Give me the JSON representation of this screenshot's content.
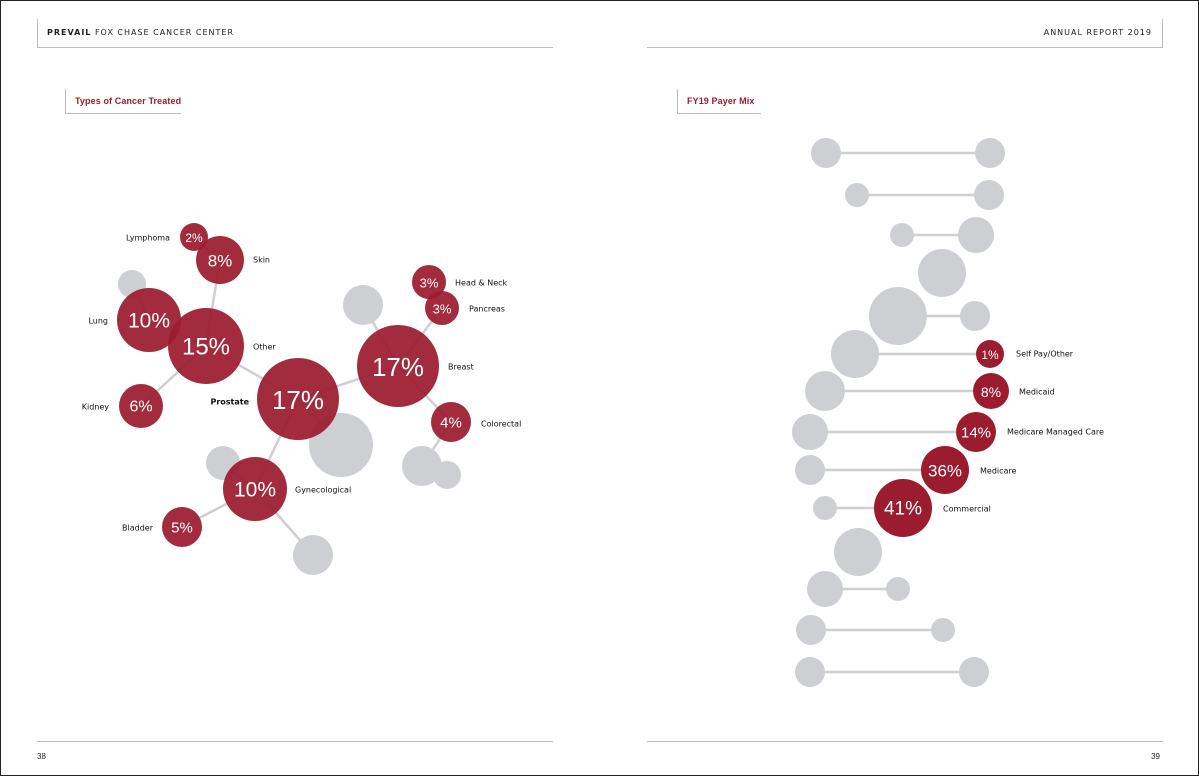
{
  "header": {
    "brand": "PREVAIL",
    "org": "FOX CHASE CANCER CENTER",
    "report": "ANNUAL REPORT 2019"
  },
  "left": {
    "title": "Types of Cancer Treated",
    "page_number": "38"
  },
  "right": {
    "title": "FY19 Payer Mix",
    "page_number": "39"
  },
  "colors": {
    "accent": "#9b1c2e",
    "gray": "#cdcfd3",
    "line": "#cdcfd3"
  },
  "chart_data": [
    {
      "type": "bubble-network",
      "title": "Types of Cancer Treated",
      "values_pct": {
        "Lymphoma": 2,
        "Skin": 8,
        "Lung": 10,
        "Other": 15,
        "Kidney": 6,
        "Prostate": 17,
        "Breast": 17,
        "Head & Neck": 3,
        "Pancreas": 3,
        "Colorectal": 4,
        "Gynecological": 10,
        "Bladder": 5
      },
      "items": [
        {
          "name": "Lymphoma",
          "pct": "2%"
        },
        {
          "name": "Skin",
          "pct": "8%"
        },
        {
          "name": "Lung",
          "pct": "10%"
        },
        {
          "name": "Other",
          "pct": "15%"
        },
        {
          "name": "Kidney",
          "pct": "6%"
        },
        {
          "name": "Prostate",
          "pct": "17%"
        },
        {
          "name": "Breast",
          "pct": "17%"
        },
        {
          "name": "Head & Neck",
          "pct": "3%"
        },
        {
          "name": "Pancreas",
          "pct": "3%"
        },
        {
          "name": "Colorectal",
          "pct": "4%"
        },
        {
          "name": "Gynecological",
          "pct": "10%"
        },
        {
          "name": "Bladder",
          "pct": "5%"
        }
      ]
    },
    {
      "type": "bubble-ladder",
      "title": "FY19 Payer Mix",
      "values_pct": {
        "Self Pay/Other": 1,
        "Medicaid": 8,
        "Medicare Managed Care": 14,
        "Medicare": 36,
        "Commercial": 41
      },
      "items": [
        {
          "name": "Self Pay/Other",
          "pct": "1%"
        },
        {
          "name": "Medicaid",
          "pct": "8%"
        },
        {
          "name": "Medicare Managed Care",
          "pct": "14%"
        },
        {
          "name": "Medicare",
          "pct": "36%"
        },
        {
          "name": "Commercial",
          "pct": "41%"
        }
      ]
    }
  ]
}
